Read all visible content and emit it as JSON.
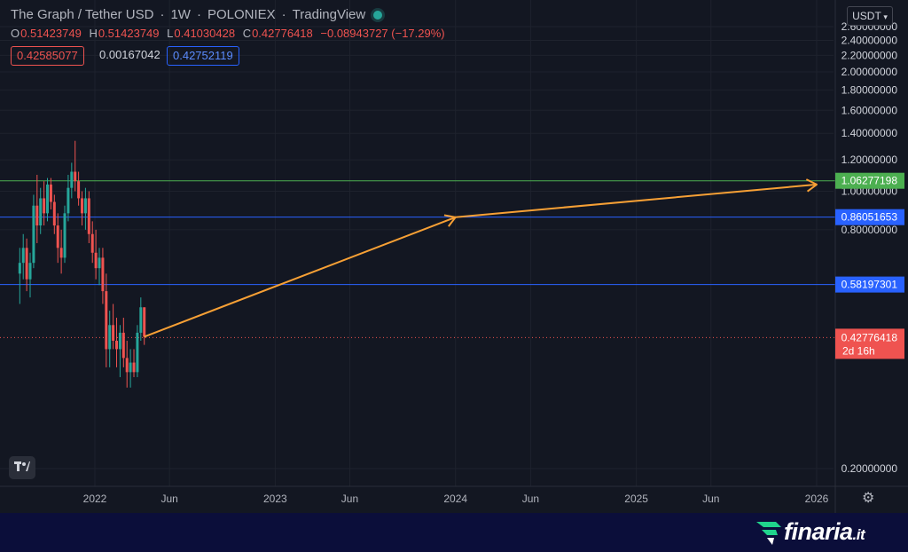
{
  "header": {
    "symbol": "The Graph / Tether USD",
    "interval": "1W",
    "exchange": "POLONIEX",
    "source": "TradingView"
  },
  "ohlc": {
    "open_label": "O",
    "open": "0.51423749",
    "high_label": "H",
    "high": "0.51423749",
    "low_label": "L",
    "low": "0.41030428",
    "close_label": "C",
    "close": "0.42776418",
    "change": "−0.08943727 (−17.29%)"
  },
  "indicators": {
    "value1": "0.42585077",
    "value2": "0.00167042",
    "value3": "0.42752119"
  },
  "currency_selector": {
    "label": "USDT",
    "icon": "chevron-down-icon"
  },
  "badge_logo": "tradingview-logo",
  "settings_icon": "gear-icon",
  "watermark": {
    "brand": "finaria",
    "tld": ".it",
    "icon": "finaria-leaf-logo"
  },
  "colors": {
    "background": "#131722",
    "up_candle": "#26a69a",
    "down_candle": "#ef5350",
    "green_level": "#4caf50",
    "blue_level": "#2962ff",
    "arrow": "#f7a035",
    "price_line": "#ef5350"
  },
  "chart_data": {
    "type": "candlestick",
    "y_scale": "log",
    "ylim": [
      0.17,
      2.7
    ],
    "y_ticks": [
      {
        "value": 0.2,
        "label": "0.20000000"
      },
      {
        "value": 0.8,
        "label": "0.80000000"
      },
      {
        "value": 1.0,
        "label": "1.00000000"
      },
      {
        "value": 1.2,
        "label": "1.20000000"
      },
      {
        "value": 1.4,
        "label": "1.40000000"
      },
      {
        "value": 1.6,
        "label": "1.60000000"
      },
      {
        "value": 1.8,
        "label": "1.80000000"
      },
      {
        "value": 2.0,
        "label": "2.00000000"
      },
      {
        "value": 2.2,
        "label": "2.20000000"
      },
      {
        "value": 2.4,
        "label": "2.40000000"
      },
      {
        "value": 2.6,
        "label": "2.60000000"
      }
    ],
    "x_ticks": [
      "2022",
      "Jun",
      "2023",
      "Jun",
      "2024",
      "Jun",
      "2025",
      "Jun",
      "2026"
    ],
    "x_tick_dates": [
      "2022-01-01",
      "2022-06-01",
      "2023-01-01",
      "2023-06-01",
      "2024-01-01",
      "2024-06-01",
      "2025-01-01",
      "2025-06-01",
      "2026-01-01"
    ],
    "candles": [
      {
        "date": "2021-08-02",
        "o": 0.62,
        "h": 0.72,
        "l": 0.52,
        "c": 0.66
      },
      {
        "date": "2021-08-09",
        "o": 0.66,
        "h": 0.78,
        "l": 0.6,
        "c": 0.72
      },
      {
        "date": "2021-08-16",
        "o": 0.72,
        "h": 0.76,
        "l": 0.56,
        "c": 0.6
      },
      {
        "date": "2021-08-23",
        "o": 0.6,
        "h": 0.7,
        "l": 0.54,
        "c": 0.66
      },
      {
        "date": "2021-08-30",
        "o": 0.66,
        "h": 0.98,
        "l": 0.64,
        "c": 0.92
      },
      {
        "date": "2021-09-06",
        "o": 0.92,
        "h": 1.1,
        "l": 0.74,
        "c": 0.82
      },
      {
        "date": "2021-09-13",
        "o": 0.82,
        "h": 1.02,
        "l": 0.78,
        "c": 0.96
      },
      {
        "date": "2021-09-20",
        "o": 0.96,
        "h": 1.06,
        "l": 0.82,
        "c": 0.88
      },
      {
        "date": "2021-09-27",
        "o": 0.88,
        "h": 1.08,
        "l": 0.84,
        "c": 1.04
      },
      {
        "date": "2021-10-04",
        "o": 1.04,
        "h": 1.08,
        "l": 0.9,
        "c": 0.94
      },
      {
        "date": "2021-10-11",
        "o": 0.94,
        "h": 0.98,
        "l": 0.78,
        "c": 0.82
      },
      {
        "date": "2021-10-18",
        "o": 0.82,
        "h": 0.88,
        "l": 0.66,
        "c": 0.72
      },
      {
        "date": "2021-10-25",
        "o": 0.72,
        "h": 0.8,
        "l": 0.62,
        "c": 0.68
      },
      {
        "date": "2021-11-01",
        "o": 0.68,
        "h": 0.92,
        "l": 0.66,
        "c": 0.88
      },
      {
        "date": "2021-11-08",
        "o": 0.88,
        "h": 1.1,
        "l": 0.84,
        "c": 1.02
      },
      {
        "date": "2021-11-15",
        "o": 1.02,
        "h": 1.18,
        "l": 0.96,
        "c": 1.12
      },
      {
        "date": "2021-11-22",
        "o": 1.12,
        "h": 1.34,
        "l": 1.0,
        "c": 1.06
      },
      {
        "date": "2021-11-29",
        "o": 1.06,
        "h": 1.12,
        "l": 0.92,
        "c": 0.96
      },
      {
        "date": "2021-12-06",
        "o": 0.96,
        "h": 1.0,
        "l": 0.82,
        "c": 0.88
      },
      {
        "date": "2021-12-13",
        "o": 0.88,
        "h": 1.02,
        "l": 0.8,
        "c": 0.96
      },
      {
        "date": "2021-12-20",
        "o": 0.96,
        "h": 1.0,
        "l": 0.74,
        "c": 0.78
      },
      {
        "date": "2021-12-27",
        "o": 0.78,
        "h": 0.84,
        "l": 0.66,
        "c": 0.7
      },
      {
        "date": "2022-01-03",
        "o": 0.7,
        "h": 0.8,
        "l": 0.6,
        "c": 0.64
      },
      {
        "date": "2022-01-10",
        "o": 0.64,
        "h": 0.72,
        "l": 0.58,
        "c": 0.68
      },
      {
        "date": "2022-01-17",
        "o": 0.68,
        "h": 0.72,
        "l": 0.52,
        "c": 0.56
      },
      {
        "date": "2022-01-24",
        "o": 0.56,
        "h": 0.62,
        "l": 0.36,
        "c": 0.4
      },
      {
        "date": "2022-01-31",
        "o": 0.4,
        "h": 0.5,
        "l": 0.36,
        "c": 0.46
      },
      {
        "date": "2022-02-07",
        "o": 0.46,
        "h": 0.52,
        "l": 0.4,
        "c": 0.42
      },
      {
        "date": "2022-02-14",
        "o": 0.42,
        "h": 0.48,
        "l": 0.36,
        "c": 0.4
      },
      {
        "date": "2022-02-21",
        "o": 0.4,
        "h": 0.46,
        "l": 0.34,
        "c": 0.44
      },
      {
        "date": "2022-02-28",
        "o": 0.44,
        "h": 0.48,
        "l": 0.36,
        "c": 0.38
      },
      {
        "date": "2022-03-07",
        "o": 0.38,
        "h": 0.42,
        "l": 0.32,
        "c": 0.35
      },
      {
        "date": "2022-03-14",
        "o": 0.35,
        "h": 0.4,
        "l": 0.32,
        "c": 0.37
      },
      {
        "date": "2022-03-21",
        "o": 0.37,
        "h": 0.4,
        "l": 0.34,
        "c": 0.35
      },
      {
        "date": "2022-03-28",
        "o": 0.35,
        "h": 0.46,
        "l": 0.34,
        "c": 0.44
      },
      {
        "date": "2022-04-04",
        "o": 0.44,
        "h": 0.54,
        "l": 0.42,
        "c": 0.51
      },
      {
        "date": "2022-04-11",
        "o": 0.51,
        "h": 0.51,
        "l": 0.41,
        "c": 0.43
      }
    ],
    "horizontal_levels": [
      {
        "value": 1.06277198,
        "label": "1.06277198",
        "color": "#4caf50"
      },
      {
        "value": 0.86051653,
        "label": "0.86051653",
        "color": "#2962ff"
      },
      {
        "value": 0.58197301,
        "label": "0.58197301",
        "color": "#2962ff"
      }
    ],
    "last_price": {
      "value": 0.42776418,
      "label": "0.42776418",
      "countdown": "2d 16h",
      "color": "#ef5350"
    },
    "arrow_path": [
      {
        "date": "2022-04-11",
        "value": 0.43
      },
      {
        "date": "2024-01-01",
        "value": 0.86
      },
      {
        "date": "2026-01-01",
        "value": 1.04
      }
    ]
  }
}
